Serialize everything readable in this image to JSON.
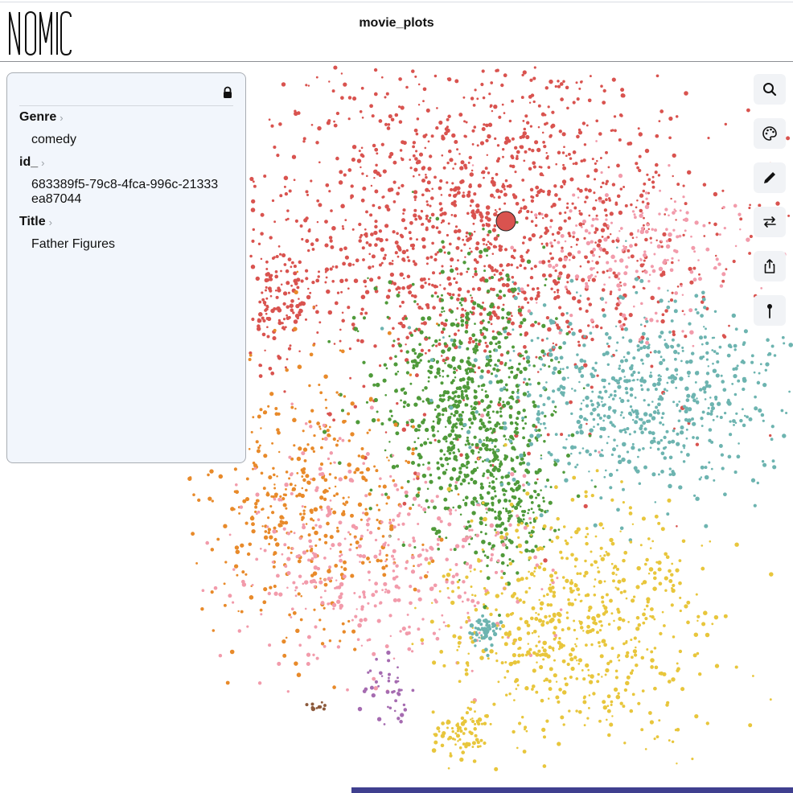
{
  "app": {
    "logo_text": "NOMIC",
    "title": "movie_plots"
  },
  "panel": {
    "locked": true,
    "fields": [
      {
        "label": "Genre",
        "value": "comedy"
      },
      {
        "label": "id_",
        "value": "683389f5-79c8-4fca-996c-21333ea87044"
      },
      {
        "label": "Title",
        "value": "Father Figures"
      }
    ]
  },
  "toolbar": [
    {
      "icon": "search-icon"
    },
    {
      "icon": "palette-icon"
    },
    {
      "icon": "pencil-icon"
    },
    {
      "icon": "swap-arrows-icon"
    },
    {
      "icon": "share-icon"
    },
    {
      "icon": "pin-icon"
    }
  ],
  "colors": {
    "red": "#d9534f",
    "green": "#4f9a3a",
    "teal": "#6db4b0",
    "orange": "#e88a2a",
    "pink": "#f29bab",
    "yellow": "#e8c63c",
    "purple": "#a56bb0",
    "brown": "#8c5a3c",
    "panel_bg": "#f2f6fc",
    "bottom_bar": "#3f3f8f"
  }
}
